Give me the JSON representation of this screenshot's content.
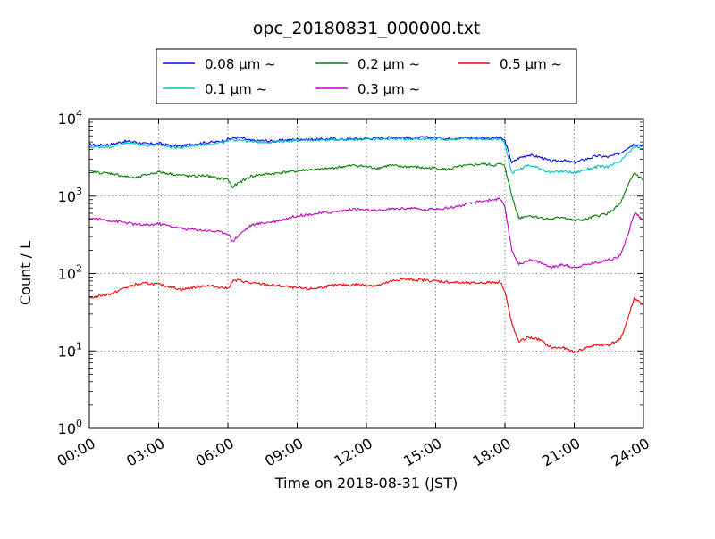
{
  "chart_data": {
    "type": "line",
    "title": "opc_20180831_000000.txt",
    "xlabel": "Time on 2018-08-31 (JST)",
    "ylabel": "Count / L",
    "x_unit": "hours",
    "xlim": [
      0,
      24
    ],
    "ylim": [
      1,
      10000
    ],
    "y_scale": "log",
    "grid": true,
    "legend_position": "top-center",
    "x_ticks": [
      {
        "value": 0,
        "label": "00:00"
      },
      {
        "value": 3,
        "label": "03:00"
      },
      {
        "value": 6,
        "label": "06:00"
      },
      {
        "value": 9,
        "label": "09:00"
      },
      {
        "value": 12,
        "label": "12:00"
      },
      {
        "value": 15,
        "label": "15:00"
      },
      {
        "value": 18,
        "label": "18:00"
      },
      {
        "value": 21,
        "label": "21:00"
      },
      {
        "value": 24,
        "label": "24:00"
      }
    ],
    "y_ticks": [
      {
        "value": 1,
        "base": "10",
        "exp": "0"
      },
      {
        "value": 10,
        "base": "10",
        "exp": "1"
      },
      {
        "value": 100,
        "base": "10",
        "exp": "2"
      },
      {
        "value": 1000,
        "base": "10",
        "exp": "3"
      },
      {
        "value": 10000,
        "base": "10",
        "exp": "4"
      }
    ],
    "x": [
      0,
      0.5,
      1,
      1.5,
      2,
      2.5,
      3,
      3.5,
      4,
      4.5,
      5,
      5.5,
      6,
      6.2,
      6.5,
      7,
      7.5,
      8,
      8.5,
      9,
      9.5,
      10,
      10.5,
      11,
      11.5,
      12,
      12.5,
      13,
      13.5,
      14,
      14.5,
      15,
      15.5,
      16,
      16.5,
      17,
      17.5,
      17.8,
      18,
      18.3,
      18.6,
      19,
      19.5,
      20,
      20.5,
      21,
      21.5,
      22,
      22.5,
      23,
      23.3,
      23.6,
      24
    ],
    "series": [
      {
        "name": "0.08 μm ~",
        "color": "#0000ff",
        "values": [
          4600,
          4550,
          4700,
          5100,
          5000,
          4700,
          4800,
          4500,
          4400,
          4700,
          4900,
          5000,
          5400,
          5600,
          5700,
          5200,
          5200,
          5100,
          5300,
          5400,
          5400,
          5400,
          5500,
          5400,
          5500,
          5500,
          5600,
          5700,
          5700,
          5600,
          5700,
          5700,
          5500,
          5700,
          5600,
          5600,
          5600,
          5700,
          5200,
          2700,
          3100,
          3400,
          3200,
          2800,
          2900,
          2700,
          3000,
          3300,
          3200,
          3600,
          4200,
          4700,
          4500
        ]
      },
      {
        "name": "0.1 μm ~",
        "color": "#00bfbf",
        "values": [
          4300,
          4300,
          4400,
          4800,
          4800,
          4500,
          4600,
          4300,
          4200,
          4500,
          4700,
          4800,
          5100,
          5300,
          5400,
          5000,
          5000,
          5000,
          5100,
          5300,
          5300,
          5300,
          5400,
          5300,
          5400,
          5400,
          5500,
          5500,
          5500,
          5500,
          5500,
          5500,
          5400,
          5500,
          5500,
          5500,
          5400,
          5500,
          4800,
          2000,
          2200,
          2500,
          2300,
          2000,
          2100,
          2000,
          2200,
          2400,
          2400,
          2800,
          3500,
          4300,
          4100
        ]
      },
      {
        "name": "0.2 μm ~",
        "color": "#008000",
        "values": [
          2100,
          2000,
          1950,
          1800,
          1700,
          1900,
          2050,
          1950,
          1850,
          1800,
          1850,
          1700,
          1650,
          1300,
          1500,
          1800,
          1900,
          1950,
          2050,
          2100,
          2200,
          2200,
          2300,
          2400,
          2500,
          2400,
          2300,
          2500,
          2400,
          2400,
          2300,
          2300,
          2200,
          2400,
          2500,
          2600,
          2500,
          2600,
          2400,
          1000,
          520,
          560,
          530,
          500,
          540,
          480,
          500,
          560,
          600,
          800,
          1300,
          2000,
          1600
        ]
      },
      {
        "name": "0.3 μm ~",
        "color": "#bf00bf",
        "values": [
          520,
          500,
          480,
          460,
          430,
          420,
          440,
          410,
          380,
          370,
          360,
          350,
          330,
          260,
          320,
          420,
          450,
          470,
          510,
          560,
          580,
          600,
          620,
          650,
          680,
          660,
          640,
          680,
          690,
          700,
          660,
          690,
          700,
          740,
          800,
          860,
          900,
          920,
          700,
          200,
          130,
          150,
          140,
          120,
          130,
          120,
          130,
          140,
          150,
          170,
          300,
          600,
          500
        ]
      },
      {
        "name": "0.5 μm ~",
        "color": "#ff0000",
        "values": [
          48,
          52,
          55,
          65,
          72,
          75,
          72,
          68,
          62,
          66,
          70,
          68,
          64,
          80,
          82,
          75,
          73,
          70,
          68,
          65,
          63,
          66,
          70,
          71,
          72,
          71,
          70,
          78,
          85,
          83,
          82,
          80,
          78,
          76,
          75,
          76,
          77,
          78,
          60,
          22,
          13,
          15,
          14,
          11,
          11,
          9.5,
          11,
          12,
          12,
          14,
          25,
          48,
          40
        ]
      }
    ]
  }
}
